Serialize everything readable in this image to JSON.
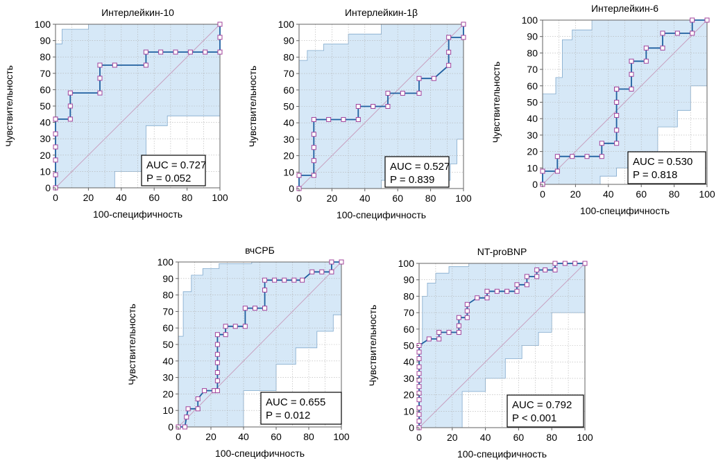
{
  "figure": {
    "tick_values": [
      0,
      10,
      20,
      30,
      40,
      50,
      60,
      70,
      80,
      90,
      100
    ],
    "x_tick_values": [
      0,
      20,
      40,
      60,
      80,
      100
    ],
    "colors": {
      "band_fill": "#d6e8f7",
      "band_stroke": "#7fa8cc",
      "curve": "#1f5fa0",
      "marker_stroke": "#a0409a",
      "diagonal": "#c8a0c0",
      "grid": "#b0b0b0"
    }
  },
  "chart_data": [
    {
      "type": "line",
      "title": "Интерлейкин-10",
      "xlabel": "100-специфичность",
      "ylabel": "Чувствительность",
      "xlim": [
        0,
        100
      ],
      "ylim": [
        0,
        100
      ],
      "grid": true,
      "auc_text": "AUC = 0.727",
      "p_text": "P = 0.052",
      "roc": {
        "x": [
          0,
          0,
          0,
          0,
          0,
          0,
          0,
          9,
          9,
          9,
          27,
          27,
          27,
          36,
          55,
          55,
          64,
          73,
          82,
          91,
          100,
          100,
          100,
          100
        ],
        "y": [
          0,
          8,
          17,
          25,
          33,
          42,
          42,
          42,
          50,
          58,
          58,
          67,
          75,
          75,
          75,
          83,
          83,
          83,
          83,
          83,
          83,
          92,
          100,
          100
        ]
      },
      "band_upper": {
        "x": [
          0,
          0,
          4,
          4,
          20,
          20,
          100
        ],
        "y": [
          0,
          88,
          88,
          97,
          97,
          100,
          100
        ]
      },
      "band_lower": {
        "x": [
          0,
          36,
          36,
          55,
          55,
          68,
          68,
          100,
          100
        ],
        "y": [
          0,
          0,
          10,
          10,
          38,
          38,
          44,
          44,
          100
        ]
      }
    },
    {
      "type": "line",
      "title": "Интерлейкин-1β",
      "xlabel": "100-специфичность",
      "ylabel": "Чувствительность",
      "xlim": [
        0,
        100
      ],
      "ylim": [
        0,
        100
      ],
      "grid": true,
      "auc_text": "AUC = 0.527",
      "p_text": "P = 0.839",
      "roc": {
        "x": [
          0,
          0,
          9,
          9,
          9,
          9,
          9,
          18,
          27,
          36,
          36,
          45,
          54,
          54,
          63,
          73,
          73,
          82,
          91,
          91,
          91,
          100,
          100
        ],
        "y": [
          0,
          8,
          8,
          17,
          25,
          33,
          42,
          42,
          42,
          42,
          50,
          50,
          50,
          58,
          58,
          58,
          67,
          67,
          75,
          83,
          92,
          92,
          100
        ]
      },
      "band_upper": {
        "x": [
          0,
          0,
          5,
          5,
          15,
          15,
          30,
          30,
          50,
          50,
          100
        ],
        "y": [
          0,
          78,
          78,
          84,
          84,
          88,
          88,
          94,
          94,
          100,
          100
        ]
      },
      "band_lower": {
        "x": [
          0,
          50,
          50,
          92,
          92,
          96,
          96,
          100,
          100
        ],
        "y": [
          0,
          0,
          5,
          5,
          15,
          15,
          30,
          30,
          100
        ]
      }
    },
    {
      "type": "line",
      "title": "Интерлейкин-6",
      "xlabel": "100-специфичность",
      "ylabel": "Чувствительность",
      "xlim": [
        0,
        100
      ],
      "ylim": [
        0,
        100
      ],
      "grid": true,
      "auc_text": "AUC = 0.530",
      "p_text": "P = 0.818",
      "roc": {
        "x": [
          0,
          0,
          9,
          9,
          18,
          27,
          36,
          36,
          45,
          45,
          45,
          45,
          45,
          45,
          45,
          54,
          54,
          54,
          63,
          63,
          73,
          73,
          82,
          91,
          91,
          100
        ],
        "y": [
          0,
          8,
          8,
          17,
          17,
          17,
          17,
          25,
          25,
          33,
          42,
          50,
          58,
          58,
          58,
          58,
          67,
          75,
          75,
          83,
          83,
          92,
          92,
          92,
          100,
          100
        ],
        "y_note": ""
      },
      "band_upper": {
        "x": [
          0,
          0,
          8,
          8,
          12,
          12,
          18,
          18,
          30,
          30,
          100
        ],
        "y": [
          0,
          55,
          55,
          65,
          65,
          88,
          88,
          94,
          94,
          100,
          100
        ]
      },
      "band_lower": {
        "x": [
          0,
          35,
          35,
          45,
          45,
          58,
          58,
          70,
          70,
          82,
          82,
          90,
          90,
          100,
          100
        ],
        "y": [
          0,
          0,
          5,
          5,
          10,
          10,
          18,
          18,
          35,
          35,
          45,
          45,
          60,
          60,
          100
        ]
      }
    },
    {
      "type": "line",
      "title": "вчСРБ",
      "xlabel": "100-специфичность",
      "ylabel": "Чувствительность",
      "xlim": [
        0,
        100
      ],
      "ylim": [
        0,
        100
      ],
      "grid": true,
      "auc_text": "AUC = 0.655",
      "p_text": "P = 0.012",
      "roc": {
        "x": [
          0,
          0,
          4,
          5,
          6,
          12,
          12,
          16,
          22,
          24,
          24,
          24,
          24,
          24,
          24,
          24,
          29,
          29,
          35,
          41,
          41,
          47,
          53,
          53,
          53,
          59,
          65,
          71,
          76,
          82,
          88,
          94,
          94,
          100
        ],
        "y": [
          0,
          0,
          0,
          6,
          11,
          11,
          17,
          22,
          22,
          22,
          28,
          33,
          39,
          44,
          50,
          56,
          56,
          61,
          61,
          61,
          72,
          72,
          72,
          83,
          89,
          89,
          89,
          89,
          89,
          94,
          94,
          94,
          100,
          100
        ]
      },
      "band_upper": {
        "x": [
          0,
          0,
          3,
          3,
          8,
          8,
          15,
          15,
          25,
          25,
          45,
          45,
          100
        ],
        "y": [
          0,
          55,
          55,
          82,
          82,
          92,
          92,
          96,
          96,
          99,
          99,
          100,
          100
        ]
      },
      "band_lower": {
        "x": [
          0,
          40,
          40,
          60,
          60,
          72,
          72,
          85,
          85,
          95,
          95,
          100,
          100
        ],
        "y": [
          0,
          0,
          22,
          22,
          38,
          38,
          48,
          48,
          58,
          58,
          68,
          68,
          100
        ]
      }
    },
    {
      "type": "line",
      "title": "NT-proBNP",
      "xlabel": "100-специфичность",
      "ylabel": "Чувствительность",
      "xlim": [
        0,
        100
      ],
      "ylim": [
        0,
        100
      ],
      "grid": true,
      "auc_text": "AUC = 0.792",
      "p_text": "P < 0.001",
      "roc": {
        "x": [
          0,
          0,
          0,
          0,
          0,
          0,
          0,
          0,
          0,
          0,
          0,
          0,
          0,
          6,
          12,
          12,
          18,
          24,
          24,
          24,
          29,
          29,
          29,
          35,
          41,
          41,
          47,
          53,
          59,
          59,
          65,
          65,
          71,
          71,
          76,
          82,
          82,
          88,
          94,
          100
        ],
        "y": [
          0,
          4,
          8,
          12,
          17,
          21,
          25,
          29,
          33,
          37,
          42,
          46,
          50,
          54,
          54,
          58,
          58,
          58,
          62,
          67,
          67,
          71,
          75,
          79,
          79,
          83,
          83,
          83,
          83,
          87,
          87,
          92,
          92,
          96,
          96,
          96,
          100,
          100,
          100,
          100
        ]
      },
      "band_upper": {
        "x": [
          0,
          0,
          2,
          2,
          5,
          5,
          10,
          10,
          18,
          18,
          30,
          30,
          100
        ],
        "y": [
          0,
          50,
          50,
          80,
          80,
          88,
          88,
          94,
          94,
          98,
          98,
          100,
          100
        ]
      },
      "band_lower": {
        "x": [
          0,
          26,
          26,
          40,
          40,
          52,
          52,
          62,
          62,
          72,
          72,
          80,
          80,
          100,
          100
        ],
        "y": [
          0,
          0,
          22,
          22,
          30,
          30,
          42,
          42,
          50,
          50,
          58,
          58,
          70,
          70,
          100
        ]
      }
    }
  ]
}
